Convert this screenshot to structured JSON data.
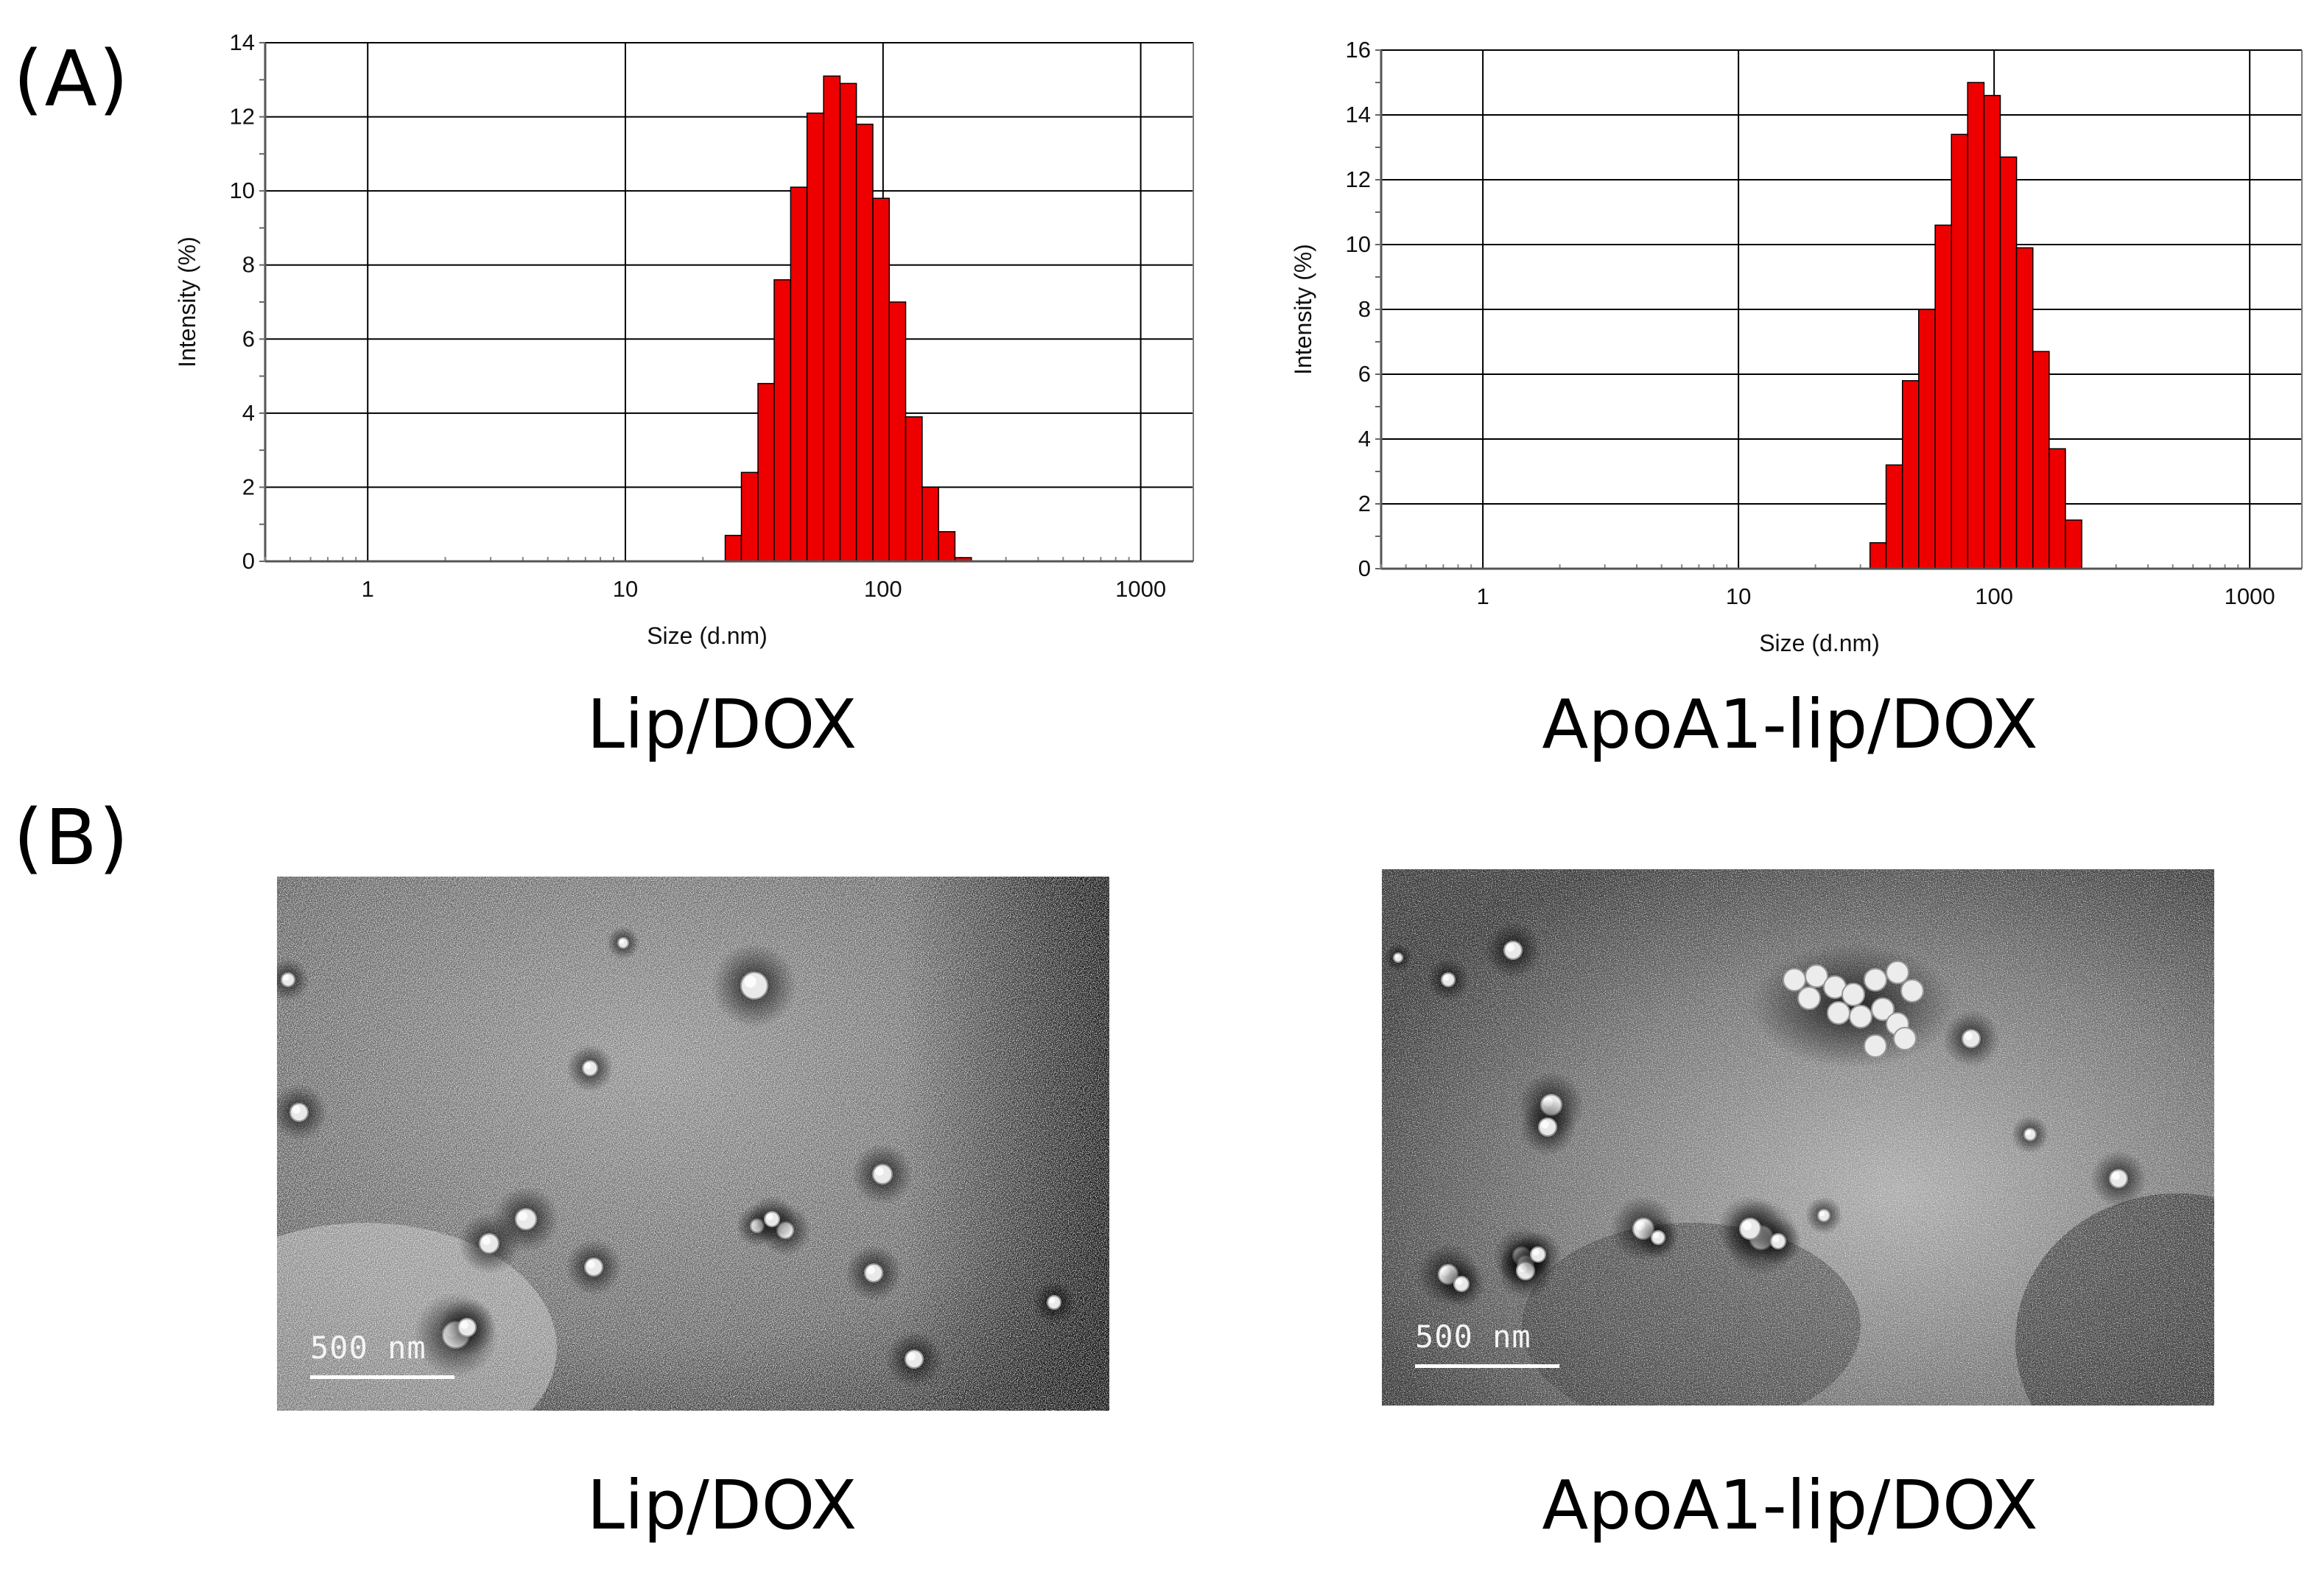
{
  "panel_labels": {
    "a": "(A)",
    "b": "(B)"
  },
  "captions": {
    "a_left": "Lip/DOX",
    "a_right": "ApoA1-lip/DOX",
    "b_left": "Lip/DOX",
    "b_right": "ApoA1-lip/DOX"
  },
  "colors": {
    "bar_fill": "#ee0000",
    "bar_stroke": "#000000",
    "grid": "#000000"
  },
  "chart_data": [
    {
      "type": "bar",
      "xlabel": "Size (d.nm)",
      "ylabel": "Intensity (%)",
      "x_scale": "log",
      "xlim": [
        0.4,
        1600
      ],
      "ylim": [
        0,
        14
      ],
      "x_ticks": [
        "1",
        "10",
        "100",
        "1000"
      ],
      "y_ticks": [
        "0",
        "2",
        "4",
        "6",
        "8",
        "10",
        "12",
        "14"
      ],
      "grid": true,
      "bin_edges": [
        24.4,
        28.2,
        32.7,
        37.8,
        43.8,
        50.7,
        58.8,
        68.1,
        78.8,
        91.3,
        105.7,
        122.4,
        141.8,
        164.2,
        190.1,
        220.2,
        255.0
      ],
      "values": [
        0.7,
        2.4,
        4.8,
        7.6,
        10.1,
        12.1,
        13.1,
        12.9,
        11.8,
        9.8,
        7.0,
        3.9,
        2.0,
        0.8,
        0.1,
        0.0
      ]
    },
    {
      "type": "bar",
      "xlabel": "Size (d.nm)",
      "ylabel": "Intensity (%)",
      "x_scale": "log",
      "xlim": [
        0.4,
        1600
      ],
      "ylim": [
        0,
        16
      ],
      "x_ticks": [
        "1",
        "10",
        "100",
        "1000"
      ],
      "y_ticks": [
        "0",
        "2",
        "4",
        "6",
        "8",
        "10",
        "12",
        "14",
        "16"
      ],
      "grid": true,
      "bin_edges": [
        32.7,
        37.8,
        43.8,
        50.7,
        58.8,
        68.1,
        78.8,
        91.3,
        105.7,
        122.4,
        141.8,
        164.2,
        190.1,
        220.2
      ],
      "values": [
        0.8,
        3.2,
        5.8,
        8.0,
        10.6,
        13.4,
        15.0,
        14.6,
        12.7,
        9.9,
        6.7,
        3.7,
        1.5
      ]
    }
  ],
  "tem_images": [
    {
      "scalebar_label": "500 nm"
    },
    {
      "scalebar_label": "500 nm"
    }
  ]
}
